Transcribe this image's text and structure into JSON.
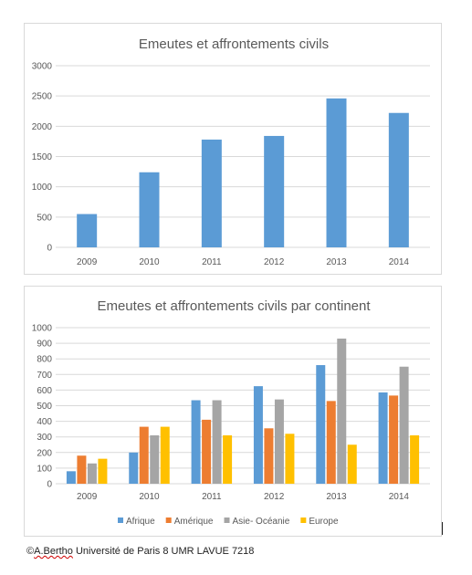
{
  "charts": [
    {
      "title": "Emeutes et affrontements civils"
    },
    {
      "title": "Emeutes et affrontements civils par continent"
    }
  ],
  "chart_data": [
    {
      "type": "bar",
      "title": "Emeutes et affrontements civils",
      "categories": [
        "2009",
        "2010",
        "2011",
        "2012",
        "2013",
        "2014"
      ],
      "series": [
        {
          "values": [
            550,
            1240,
            1780,
            1840,
            2460,
            2220
          ],
          "color": "#5b9bd5"
        }
      ],
      "ylim": [
        0,
        3000
      ],
      "yticks": [
        0,
        500,
        1000,
        1500,
        2000,
        2500,
        3000
      ],
      "grid": true,
      "legend": "none"
    },
    {
      "type": "bar",
      "title": "Emeutes et affrontements civils par continent",
      "categories": [
        "2009",
        "2010",
        "2011",
        "2012",
        "2013",
        "2014"
      ],
      "series": [
        {
          "name": "Afrique",
          "values": [
            80,
            200,
            535,
            625,
            760,
            585
          ],
          "color": "#5b9bd5"
        },
        {
          "name": "Amérique",
          "values": [
            180,
            365,
            410,
            355,
            530,
            565
          ],
          "color": "#ed7d31"
        },
        {
          "name": "Asie- Océanie",
          "values": [
            130,
            310,
            535,
            540,
            930,
            750
          ],
          "color": "#a5a5a5"
        },
        {
          "name": "Europe",
          "values": [
            160,
            365,
            310,
            320,
            250,
            310
          ],
          "color": "#ffc000"
        }
      ],
      "ylim": [
        0,
        1000
      ],
      "yticks": [
        0,
        100,
        200,
        300,
        400,
        500,
        600,
        700,
        800,
        900,
        1000
      ],
      "grid": true,
      "legend": "bottom"
    }
  ],
  "credit": {
    "prefix": "©",
    "squiggle": "A.Bertho",
    "rest": " Université de Paris 8 UMR LAVUE 7218"
  }
}
